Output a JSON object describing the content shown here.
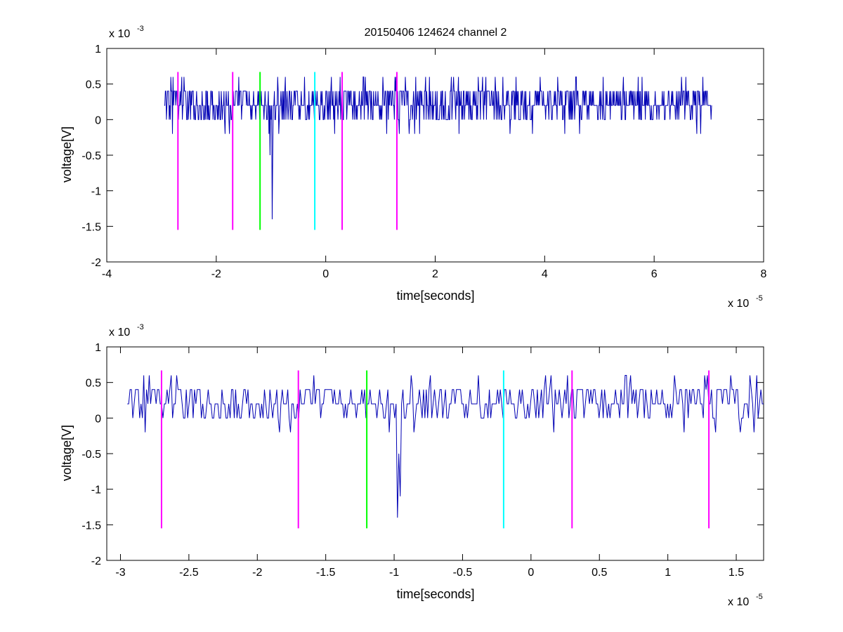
{
  "figure": {
    "title": "20150406 124624 channel 2"
  },
  "chart_data": [
    {
      "type": "line",
      "title": "20150406 124624 channel 2",
      "xlabel": "time[seconds]",
      "ylabel": "voltage[V]",
      "x_multiplier_label": "x 10",
      "x_multiplier_exp": "-5",
      "y_multiplier_label": "x 10",
      "y_multiplier_exp": "-3",
      "xlim": [
        -4e-05,
        8e-05
      ],
      "ylim": [
        -0.002,
        0.001
      ],
      "xticks": [
        -4,
        -2,
        0,
        2,
        4,
        6,
        8
      ],
      "xtick_labels": [
        "-4",
        "-2",
        "0",
        "2",
        "4",
        "6",
        "8"
      ],
      "yticks": [
        1,
        0.5,
        0,
        -0.5,
        -1,
        -1.5,
        -2
      ],
      "ytick_labels": [
        "1",
        "0.5",
        "0",
        "-0.5",
        "-1",
        "-1.5",
        "-2"
      ],
      "grid": false,
      "series_color": "#0000b4",
      "signal": {
        "x_start": -2.95e-05,
        "x_end": 7.05e-05,
        "samples": 1000,
        "baseline": 0.0002,
        "levels": [
          0.4,
          0.2,
          0.0,
          0.2,
          0.4,
          0.2
        ],
        "spike": {
          "x": -9.8e-06,
          "y": -0.0014
        },
        "dips": [
          {
            "x": -2.8e-05,
            "y": -0.0002
          },
          {
            "x": 6.78e-05,
            "y": -0.0002
          },
          {
            "x": 6.85e-05,
            "y": -0.0002
          },
          {
            "x": 3.1e-05,
            "y": 0.0006
          },
          {
            "x": -1.02e-05,
            "y": -0.0005
          }
        ]
      },
      "markers": [
        {
          "x": -2.7e-05,
          "y0": -0.00155,
          "y1": 0.00067,
          "color": "#ff00ff"
        },
        {
          "x": -1.7e-05,
          "y0": -0.00155,
          "y1": 0.00067,
          "color": "#ff00ff"
        },
        {
          "x": -1.2e-05,
          "y0": -0.00155,
          "y1": 0.00067,
          "color": "#00ff00"
        },
        {
          "x": -2e-06,
          "y0": -0.00155,
          "y1": 0.00067,
          "color": "#00ffff"
        },
        {
          "x": 3e-06,
          "y0": -0.00155,
          "y1": 0.00067,
          "color": "#ff00ff"
        },
        {
          "x": 1.3e-05,
          "y0": -0.00155,
          "y1": 0.00067,
          "color": "#ff00ff"
        }
      ]
    },
    {
      "type": "line",
      "title": "",
      "xlabel": "time[seconds]",
      "ylabel": "voltage[V]",
      "x_multiplier_label": "x 10",
      "x_multiplier_exp": "-5",
      "y_multiplier_label": "x 10",
      "y_multiplier_exp": "-3",
      "xlim": [
        -3.1e-05,
        1.7e-05
      ],
      "ylim": [
        -0.002,
        0.001
      ],
      "xticks": [
        -3,
        -2.5,
        -2,
        -1.5,
        -1,
        -0.5,
        0,
        0.5,
        1,
        1.5
      ],
      "xtick_labels": [
        "-3",
        "-2.5",
        "-2",
        "-1.5",
        "-1",
        "-0.5",
        "0",
        "0.5",
        "1",
        "1.5"
      ],
      "yticks": [
        1,
        0.5,
        0,
        -0.5,
        -1,
        -1.5,
        -2
      ],
      "ytick_labels": [
        "1",
        "0.5",
        "0",
        "-0.5",
        "-1",
        "-1.5",
        "-2"
      ],
      "grid": false,
      "series_color": "#0000b4",
      "signal": {
        "x_start": -2.95e-05,
        "x_end": 1.7e-05,
        "samples": 465,
        "baseline": 0.0002,
        "levels": [
          0.4,
          0.2,
          0.0,
          0.2,
          0.4,
          0.2
        ],
        "spike": {
          "x": -9.8e-06,
          "y": -0.0014
        },
        "dips": [
          {
            "x": -2.82e-05,
            "y": -0.0002
          },
          {
            "x": -9.6e-06,
            "y": -0.0011
          },
          {
            "x": 1.6e-05,
            "y": 0.0006
          },
          {
            "x": 1.5e-06,
            "y": 0.0006
          }
        ]
      },
      "markers": [
        {
          "x": -2.7e-05,
          "y0": -0.00155,
          "y1": 0.00067,
          "color": "#ff00ff"
        },
        {
          "x": -1.7e-05,
          "y0": -0.00155,
          "y1": 0.00067,
          "color": "#ff00ff"
        },
        {
          "x": -1.2e-05,
          "y0": -0.00155,
          "y1": 0.00067,
          "color": "#00ff00"
        },
        {
          "x": -2e-06,
          "y0": -0.00155,
          "y1": 0.00067,
          "color": "#00ffff"
        },
        {
          "x": 3e-06,
          "y0": -0.00155,
          "y1": 0.00067,
          "color": "#ff00ff"
        },
        {
          "x": 1.3e-05,
          "y0": -0.00155,
          "y1": 0.00067,
          "color": "#ff00ff"
        }
      ]
    }
  ]
}
